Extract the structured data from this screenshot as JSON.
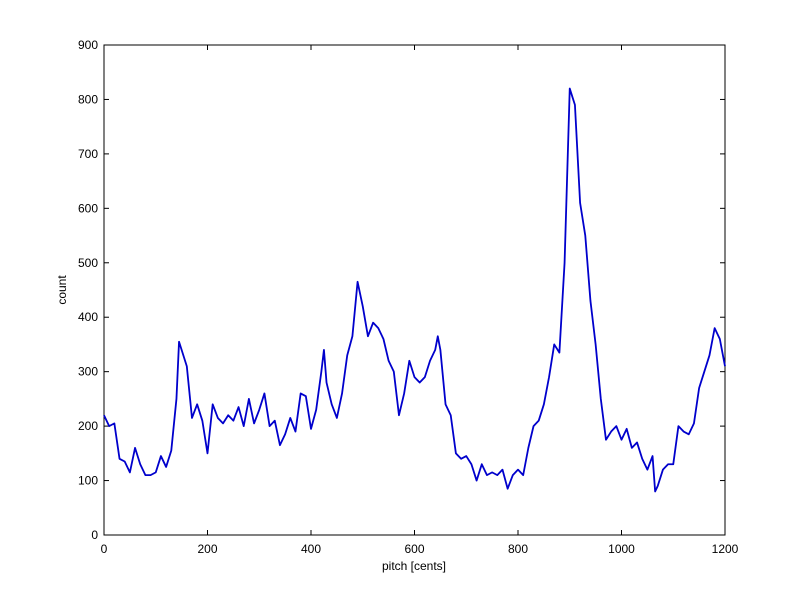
{
  "chart_data": {
    "type": "line",
    "x_label": "pitch [cents]",
    "y_label": "count",
    "x": [
      0,
      10,
      20,
      30,
      40,
      50,
      60,
      70,
      80,
      90,
      100,
      110,
      120,
      130,
      140,
      145,
      150,
      160,
      170,
      180,
      190,
      200,
      210,
      220,
      230,
      240,
      250,
      260,
      270,
      280,
      290,
      300,
      310,
      320,
      330,
      340,
      350,
      360,
      370,
      380,
      390,
      400,
      410,
      420,
      425,
      430,
      440,
      450,
      460,
      470,
      480,
      490,
      500,
      510,
      520,
      530,
      540,
      550,
      560,
      570,
      580,
      590,
      600,
      610,
      620,
      630,
      640,
      645,
      650,
      660,
      670,
      680,
      690,
      700,
      710,
      720,
      730,
      740,
      750,
      760,
      770,
      780,
      790,
      800,
      810,
      820,
      830,
      840,
      850,
      860,
      870,
      880,
      890,
      900,
      910,
      920,
      930,
      940,
      950,
      960,
      970,
      980,
      990,
      1000,
      1010,
      1020,
      1030,
      1040,
      1050,
      1060,
      1065,
      1070,
      1080,
      1090,
      1100,
      1110,
      1120,
      1130,
      1140,
      1150,
      1160,
      1170,
      1180,
      1190,
      1200
    ],
    "series": [
      {
        "name": "count",
        "color": "#0000cc",
        "values": [
          220,
          200,
          205,
          140,
          135,
          115,
          160,
          130,
          110,
          110,
          115,
          145,
          125,
          155,
          250,
          355,
          340,
          310,
          215,
          240,
          210,
          150,
          240,
          215,
          205,
          220,
          210,
          235,
          200,
          250,
          205,
          230,
          260,
          200,
          210,
          165,
          185,
          215,
          190,
          260,
          255,
          195,
          230,
          300,
          340,
          280,
          240,
          215,
          260,
          330,
          365,
          465,
          420,
          365,
          390,
          380,
          360,
          320,
          300,
          220,
          260,
          320,
          290,
          280,
          290,
          320,
          340,
          365,
          340,
          240,
          220,
          150,
          140,
          145,
          130,
          100,
          130,
          110,
          115,
          110,
          120,
          85,
          110,
          120,
          110,
          160,
          200,
          210,
          240,
          290,
          350,
          335,
          500,
          820,
          790,
          610,
          550,
          430,
          350,
          250,
          175,
          190,
          200,
          175,
          195,
          160,
          170,
          140,
          120,
          145,
          80,
          90,
          120,
          130,
          130,
          200,
          190,
          185,
          205,
          270,
          300,
          330,
          380,
          360,
          310
        ]
      }
    ],
    "xlim": [
      0,
      1200
    ],
    "xticks": [
      0,
      200,
      400,
      600,
      800,
      1000,
      1200
    ],
    "ylim": [
      0,
      900
    ],
    "yticks": [
      0,
      100,
      200,
      300,
      400,
      500,
      600,
      700,
      800,
      900
    ]
  }
}
